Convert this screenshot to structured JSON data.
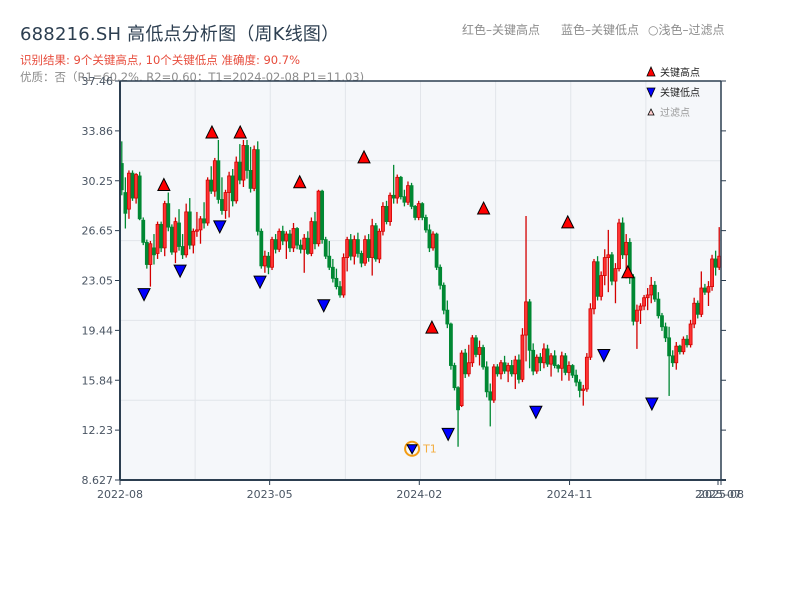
{
  "header": {
    "title": "688216.SH 高低点分析图（周K线图）",
    "result_line": "识别结果: 9个关键高点, 10个关键低点  准确度: 90.7%",
    "quality_line": "优质：否（R1=60.2%, R2=0.60；T1=2024-02-08 P1=11.03)",
    "top_legend": {
      "red": "红色–关键高点",
      "blue": "蓝色–关键低点",
      "light": "○浅色–过滤点"
    }
  },
  "legend": {
    "items": [
      {
        "label": "关键高点",
        "marker": "triangle-up",
        "color": "#ff0000"
      },
      {
        "label": "关键低点",
        "marker": "triangle-down",
        "color": "#0000ff"
      },
      {
        "label": "过滤点",
        "marker": "triangle-up-hollow",
        "color": "#ffcccc"
      }
    ]
  },
  "colors": {
    "up": "#d40000",
    "up_body": "#ff3333",
    "down": "#008833",
    "high_marker": "#ff0000",
    "low_marker": "#0000ff",
    "t1_ring": "#f39c12",
    "grid": "#e2e5ea",
    "plot_bg": "#f5f7fa",
    "spine": "#2c3e50"
  },
  "chart_data": {
    "type": "candlestick",
    "title": "688216.SH 高低点分析图（周K线图）",
    "xlabel": "",
    "ylabel": "",
    "ylim": [
      8.627,
      37.46
    ],
    "y_ticks": [
      "37.46",
      "33.86",
      "30.25",
      "26.65",
      "23.05",
      "19.44",
      "15.84",
      "12.23",
      "8.627"
    ],
    "x_ticks": [
      "2022-08",
      "2023-05",
      "2024-02",
      "2024-11",
      "2025-07",
      "2025-08"
    ],
    "x_tick_pos": [
      0,
      0.249,
      0.498,
      0.748,
      0.995,
      1.0
    ],
    "key_highs": [
      {
        "pos": 0.073,
        "price": 29.4
      },
      {
        "pos": 0.153,
        "price": 33.2
      },
      {
        "pos": 0.2,
        "price": 33.2
      },
      {
        "pos": 0.299,
        "price": 29.6
      },
      {
        "pos": 0.406,
        "price": 31.4
      },
      {
        "pos": 0.519,
        "price": 19.1
      },
      {
        "pos": 0.605,
        "price": 27.7
      },
      {
        "pos": 0.745,
        "price": 26.7
      },
      {
        "pos": 0.845,
        "price": 23.1
      }
    ],
    "key_lows": [
      {
        "pos": 0.04,
        "price": 22.6
      },
      {
        "pos": 0.1,
        "price": 24.3
      },
      {
        "pos": 0.166,
        "price": 27.5
      },
      {
        "pos": 0.233,
        "price": 23.5
      },
      {
        "pos": 0.339,
        "price": 21.8
      },
      {
        "pos": 0.486,
        "price": 11.03,
        "label": "T1"
      },
      {
        "pos": 0.546,
        "price": 12.5
      },
      {
        "pos": 0.692,
        "price": 14.1
      },
      {
        "pos": 0.805,
        "price": 18.2
      },
      {
        "pos": 0.885,
        "price": 14.7
      }
    ],
    "ohlc": [
      [
        31.5,
        33.1,
        29.2,
        29.6
      ],
      [
        29.4,
        30.5,
        26.8,
        27.9
      ],
      [
        28.2,
        31.0,
        27.5,
        30.8
      ],
      [
        30.8,
        31.0,
        28.8,
        29.0
      ],
      [
        29.0,
        30.8,
        28.6,
        30.7
      ],
      [
        30.6,
        30.9,
        27.4,
        27.5
      ],
      [
        27.4,
        27.6,
        25.6,
        25.8
      ],
      [
        25.8,
        26.0,
        23.9,
        24.2
      ],
      [
        24.2,
        25.9,
        22.6,
        25.7
      ],
      [
        25.4,
        26.4,
        24.2,
        24.9
      ],
      [
        25.0,
        27.3,
        24.6,
        27.1
      ],
      [
        27.1,
        27.3,
        25.1,
        25.4
      ],
      [
        25.4,
        28.8,
        24.8,
        28.6
      ],
      [
        28.6,
        29.4,
        26.6,
        26.9
      ],
      [
        26.9,
        27.1,
        24.9,
        25.1
      ],
      [
        25.1,
        27.6,
        24.3,
        27.3
      ],
      [
        27.2,
        28.2,
        25.2,
        25.5
      ],
      [
        25.5,
        26.4,
        24.6,
        24.9
      ],
      [
        24.9,
        28.6,
        24.7,
        28.0
      ],
      [
        28.0,
        29.0,
        25.3,
        25.6
      ],
      [
        25.6,
        26.8,
        25.0,
        26.6
      ],
      [
        26.6,
        28.0,
        26.2,
        26.7
      ],
      [
        26.7,
        27.7,
        25.7,
        27.5
      ],
      [
        27.5,
        28.7,
        26.8,
        27.2
      ],
      [
        27.2,
        30.5,
        27.0,
        30.3
      ],
      [
        30.3,
        31.3,
        29.3,
        29.5
      ],
      [
        29.5,
        31.9,
        29.1,
        31.7
      ],
      [
        31.7,
        33.2,
        28.6,
        28.9
      ],
      [
        28.9,
        30.5,
        27.8,
        28.1
      ],
      [
        28.1,
        29.6,
        27.5,
        29.4
      ],
      [
        29.4,
        30.9,
        27.6,
        30.6
      ],
      [
        30.6,
        31.1,
        28.4,
        28.8
      ],
      [
        28.8,
        32.0,
        28.6,
        31.6
      ],
      [
        31.6,
        32.9,
        30.0,
        30.3
      ],
      [
        30.3,
        33.2,
        29.8,
        32.8
      ],
      [
        32.8,
        33.2,
        30.4,
        31.0
      ],
      [
        31.0,
        32.7,
        29.4,
        29.7
      ],
      [
        29.7,
        32.8,
        29.5,
        32.5
      ],
      [
        32.5,
        33.1,
        26.3,
        26.6
      ],
      [
        26.6,
        26.8,
        23.9,
        24.1
      ],
      [
        24.1,
        25.2,
        23.6,
        24.8
      ],
      [
        24.8,
        25.1,
        23.5,
        24.0
      ],
      [
        24.0,
        26.2,
        23.8,
        26.0
      ],
      [
        26.0,
        26.4,
        25.0,
        25.3
      ],
      [
        25.3,
        26.8,
        25.1,
        26.6
      ],
      [
        26.6,
        27.0,
        25.6,
        25.9
      ],
      [
        25.9,
        26.6,
        24.6,
        26.4
      ],
      [
        26.4,
        26.7,
        25.1,
        25.4
      ],
      [
        25.4,
        27.2,
        25.1,
        26.8
      ],
      [
        26.8,
        26.9,
        25.3,
        25.6
      ],
      [
        25.6,
        26.0,
        25.0,
        25.3
      ],
      [
        25.3,
        26.4,
        23.6,
        26.1
      ],
      [
        26.1,
        26.6,
        24.9,
        25.0
      ],
      [
        25.0,
        27.6,
        24.8,
        27.3
      ],
      [
        27.3,
        28.0,
        25.3,
        25.7
      ],
      [
        25.7,
        29.6,
        25.5,
        29.5
      ],
      [
        29.5,
        29.6,
        25.7,
        26.0
      ],
      [
        26.0,
        26.2,
        24.6,
        24.8
      ],
      [
        24.8,
        25.9,
        23.8,
        24.0
      ],
      [
        24.0,
        24.6,
        22.9,
        23.2
      ],
      [
        23.2,
        23.9,
        22.4,
        22.6
      ],
      [
        22.6,
        23.0,
        21.8,
        22.0
      ],
      [
        22.0,
        25.0,
        21.8,
        24.7
      ],
      [
        24.7,
        26.2,
        23.7,
        26.0
      ],
      [
        26.0,
        26.4,
        24.5,
        24.8
      ],
      [
        24.8,
        26.3,
        24.2,
        26.0
      ],
      [
        26.0,
        26.5,
        24.7,
        25.0
      ],
      [
        25.0,
        25.2,
        24.0,
        24.3
      ],
      [
        24.3,
        26.3,
        24.1,
        26.0
      ],
      [
        26.0,
        26.4,
        24.4,
        24.7
      ],
      [
        24.7,
        27.5,
        23.4,
        27.0
      ],
      [
        27.0,
        27.2,
        24.4,
        24.6
      ],
      [
        24.6,
        26.8,
        24.3,
        26.6
      ],
      [
        26.6,
        28.7,
        26.3,
        28.4
      ],
      [
        28.4,
        28.8,
        27.1,
        27.3
      ],
      [
        27.3,
        29.4,
        27.0,
        29.2
      ],
      [
        29.2,
        31.4,
        28.6,
        29.0
      ],
      [
        29.0,
        30.7,
        28.6,
        30.5
      ],
      [
        30.5,
        30.6,
        28.9,
        29.1
      ],
      [
        29.1,
        29.6,
        28.4,
        28.7
      ],
      [
        28.7,
        30.2,
        28.5,
        29.9
      ],
      [
        29.9,
        30.1,
        28.2,
        28.4
      ],
      [
        28.4,
        28.5,
        27.4,
        27.6
      ],
      [
        27.6,
        28.8,
        27.4,
        28.6
      ],
      [
        28.6,
        28.7,
        27.4,
        27.6
      ],
      [
        27.6,
        27.8,
        26.5,
        26.7
      ],
      [
        26.7,
        27.1,
        25.1,
        25.4
      ],
      [
        25.4,
        26.6,
        25.2,
        26.4
      ],
      [
        26.4,
        26.5,
        23.8,
        24.0
      ],
      [
        24.0,
        24.2,
        22.4,
        22.7
      ],
      [
        22.7,
        22.9,
        20.6,
        20.9
      ],
      [
        20.9,
        21.6,
        19.6,
        19.9
      ],
      [
        19.9,
        20.0,
        16.6,
        16.9
      ],
      [
        16.9,
        17.1,
        15.1,
        15.3
      ],
      [
        15.3,
        15.4,
        11.03,
        13.7
      ],
      [
        14.0,
        18.0,
        13.9,
        17.8
      ],
      [
        17.8,
        18.1,
        16.0,
        16.3
      ],
      [
        16.3,
        18.4,
        16.1,
        17.1
      ],
      [
        17.1,
        19.1,
        16.8,
        18.9
      ],
      [
        18.9,
        19.1,
        17.5,
        17.7
      ],
      [
        17.7,
        18.7,
        16.9,
        18.2
      ],
      [
        18.2,
        18.4,
        16.6,
        16.8
      ],
      [
        16.8,
        17.2,
        14.6,
        15.0
      ],
      [
        15.0,
        15.6,
        12.5,
        14.4
      ],
      [
        14.4,
        17.0,
        14.2,
        16.8
      ],
      [
        16.8,
        17.0,
        16.1,
        16.3
      ],
      [
        16.3,
        17.3,
        15.9,
        17.1
      ],
      [
        17.1,
        17.6,
        16.3,
        16.5
      ],
      [
        16.5,
        17.1,
        15.7,
        16.9
      ],
      [
        16.9,
        17.3,
        16.1,
        16.3
      ],
      [
        16.3,
        17.6,
        15.2,
        17.3
      ],
      [
        17.3,
        17.7,
        15.6,
        15.9
      ],
      [
        15.9,
        19.6,
        15.7,
        19.1
      ],
      [
        19.1,
        27.7,
        17.2,
        21.5
      ],
      [
        21.5,
        21.7,
        16.7,
        18.0
      ],
      [
        18.0,
        18.5,
        16.2,
        16.5
      ],
      [
        16.5,
        17.7,
        16.3,
        17.5
      ],
      [
        17.5,
        17.8,
        16.5,
        17.1
      ],
      [
        17.1,
        18.5,
        16.7,
        18.1
      ],
      [
        18.1,
        18.4,
        16.8,
        17.0
      ],
      [
        17.0,
        17.8,
        16.1,
        17.6
      ],
      [
        17.6,
        18.0,
        16.7,
        16.9
      ],
      [
        16.9,
        17.0,
        16.4,
        16.7
      ],
      [
        16.7,
        17.9,
        15.8,
        17.6
      ],
      [
        17.6,
        17.8,
        16.2,
        16.4
      ],
      [
        16.4,
        17.2,
        15.8,
        16.9
      ],
      [
        16.9,
        17.0,
        16.0,
        16.2
      ],
      [
        16.2,
        16.6,
        15.4,
        15.7
      ],
      [
        15.7,
        15.9,
        14.6,
        15.1
      ],
      [
        15.1,
        15.5,
        14.0,
        15.2
      ],
      [
        15.2,
        17.8,
        15.0,
        17.5
      ],
      [
        17.5,
        21.4,
        17.3,
        21.0
      ],
      [
        21.0,
        24.6,
        20.6,
        24.4
      ],
      [
        24.4,
        24.8,
        21.6,
        21.9
      ],
      [
        21.9,
        23.7,
        21.6,
        23.4
      ],
      [
        23.4,
        25.3,
        22.7,
        24.7
      ],
      [
        24.7,
        26.7,
        22.2,
        24.9
      ],
      [
        24.9,
        25.1,
        22.7,
        23.0
      ],
      [
        23.0,
        24.3,
        21.4,
        23.9
      ],
      [
        23.9,
        27.5,
        23.7,
        27.2
      ],
      [
        27.2,
        27.6,
        24.6,
        24.9
      ],
      [
        24.9,
        26.4,
        23.2,
        25.8
      ],
      [
        25.8,
        26.1,
        22.8,
        23.3
      ],
      [
        23.3,
        23.5,
        19.8,
        20.1
      ],
      [
        20.1,
        21.3,
        18.1,
        20.9
      ],
      [
        20.9,
        21.4,
        19.9,
        21.2
      ],
      [
        21.2,
        22.0,
        20.9,
        21.8
      ],
      [
        21.8,
        22.5,
        20.9,
        22.0
      ],
      [
        22.0,
        23.3,
        21.4,
        22.7
      ],
      [
        22.7,
        23.0,
        21.5,
        21.7
      ],
      [
        21.7,
        22.2,
        20.3,
        20.5
      ],
      [
        20.5,
        20.7,
        19.4,
        19.7
      ],
      [
        19.7,
        20.0,
        18.6,
        18.9
      ],
      [
        18.9,
        19.7,
        14.7,
        17.6
      ],
      [
        17.6,
        18.0,
        16.8,
        17.1
      ],
      [
        17.1,
        18.6,
        16.6,
        18.3
      ],
      [
        18.3,
        18.4,
        17.7,
        17.9
      ],
      [
        17.9,
        19.0,
        17.7,
        18.8
      ],
      [
        18.8,
        19.1,
        18.2,
        18.4
      ],
      [
        18.4,
        20.2,
        18.2,
        19.9
      ],
      [
        19.9,
        21.8,
        19.6,
        21.4
      ],
      [
        21.4,
        21.6,
        20.3,
        20.6
      ],
      [
        20.6,
        23.7,
        20.4,
        22.5
      ],
      [
        22.5,
        22.8,
        22.0,
        22.2
      ],
      [
        22.2,
        23.0,
        21.2,
        22.6
      ],
      [
        22.6,
        24.9,
        22.3,
        24.6
      ],
      [
        24.6,
        25.2,
        23.4,
        24.0
      ],
      [
        24.0,
        26.9,
        23.8,
        24.8
      ]
    ]
  }
}
